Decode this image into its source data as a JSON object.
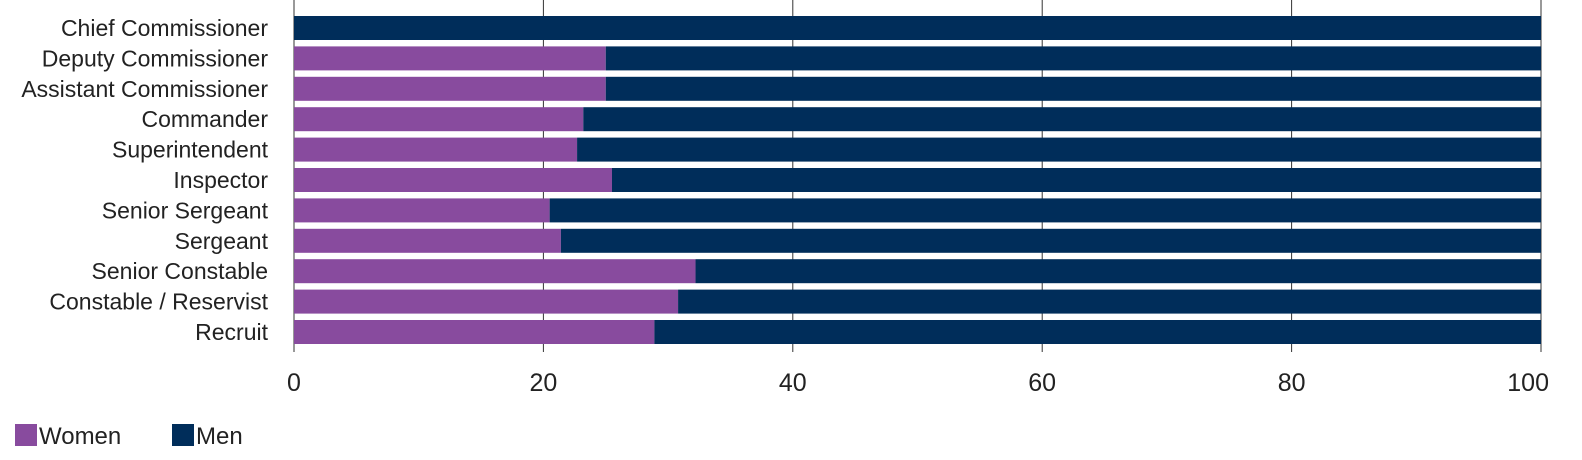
{
  "chart_data": {
    "type": "bar",
    "orientation": "horizontal",
    "stacked": true,
    "categories": [
      "Chief Commissioner",
      "Deputy Commissioner",
      "Assistant Commissioner",
      "Commander",
      "Superintendent",
      "Inspector",
      "Senior Sergeant",
      "Sergeant",
      "Senior Constable",
      "Constable / Reservist",
      "Recruit"
    ],
    "series": [
      {
        "name": "Women",
        "color": "#884b9e",
        "values": [
          0,
          25,
          25,
          23.2,
          22.7,
          25.5,
          20.5,
          21.4,
          32.2,
          30.8,
          28.9
        ]
      },
      {
        "name": "Men",
        "color": "#002d5a",
        "values": [
          100,
          75,
          75,
          76.8,
          77.3,
          74.5,
          79.5,
          78.6,
          67.8,
          69.2,
          71.1
        ]
      }
    ],
    "xlim": [
      0,
      100
    ],
    "xticks": [
      0,
      20,
      40,
      60,
      80,
      100
    ],
    "grid": "vertical",
    "legend_position": "bottom-left",
    "title": "",
    "xlabel": "",
    "ylabel": ""
  }
}
